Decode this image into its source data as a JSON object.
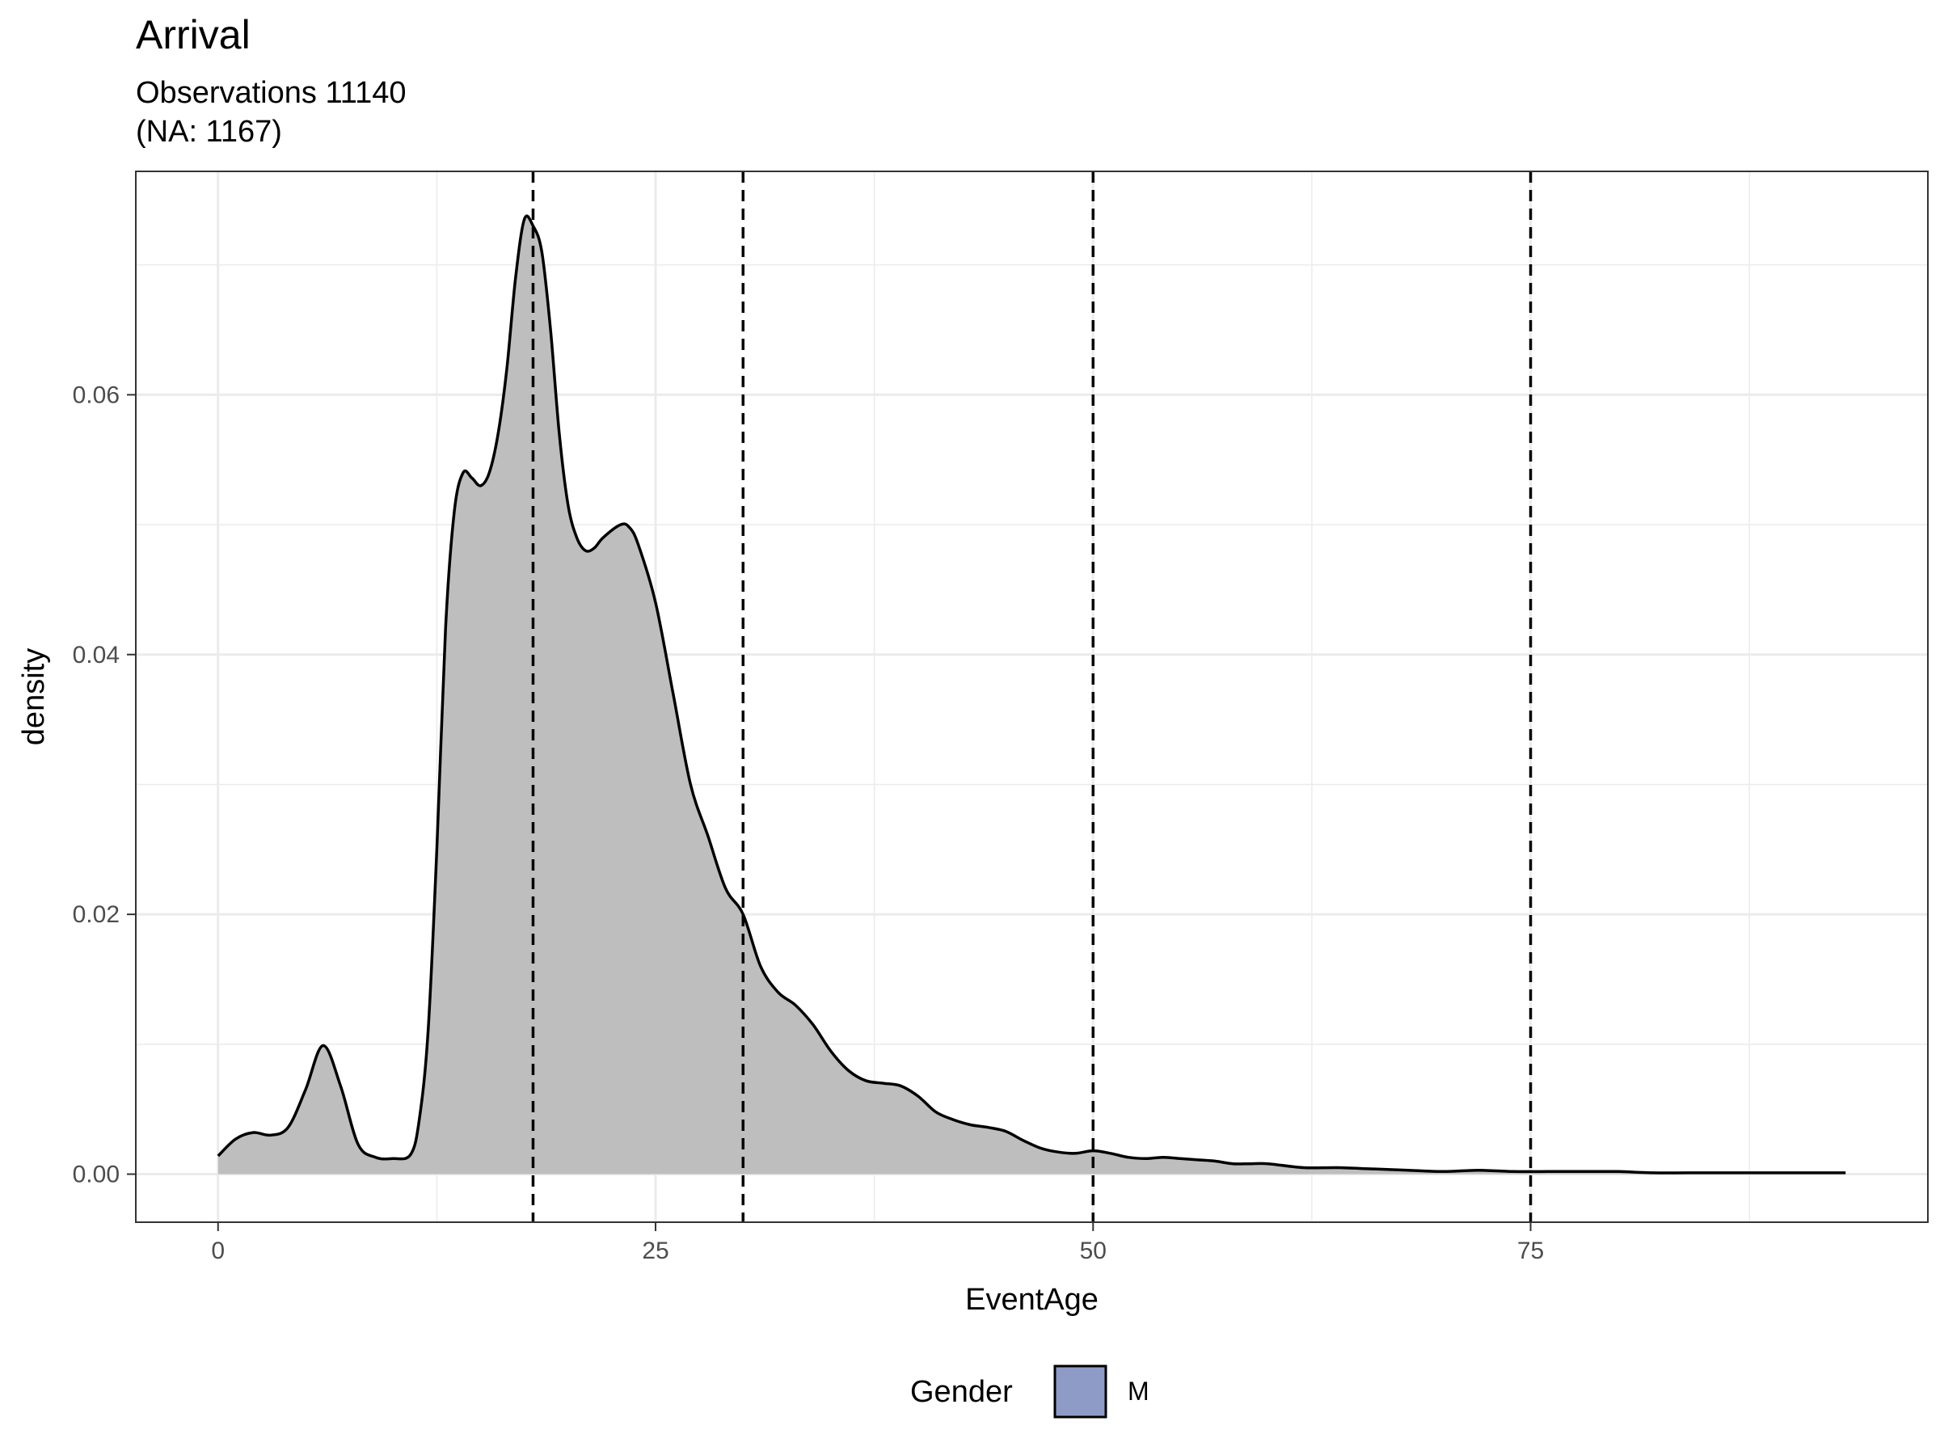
{
  "chart_data": {
    "type": "area",
    "title": "Arrival",
    "subtitle_lines": [
      "Observations 11140",
      "(NA: 1167)"
    ],
    "xlabel": "EventAge",
    "ylabel": "density",
    "xlim": [
      -4.7,
      97.7
    ],
    "ylim": [
      -0.0037,
      0.0772
    ],
    "x_ticks": [
      0,
      25,
      50,
      75
    ],
    "x_tick_labels": [
      "0",
      "25",
      "50",
      "75"
    ],
    "y_ticks": [
      0,
      0.02,
      0.04,
      0.06
    ],
    "y_tick_labels": [
      "0.00",
      "0.02",
      "0.04",
      "0.06"
    ],
    "grid": true,
    "vlines": [
      18,
      30,
      50,
      75
    ],
    "series": [
      {
        "legend_label": "M",
        "area_fill": "#bebebe",
        "legend_fill": "#8f9bc7",
        "line_color": "#000000",
        "x": [
          0,
          1,
          2,
          3,
          4,
          5,
          6,
          7,
          8,
          9,
          10,
          11,
          11.5,
          12,
          12.5,
          13,
          13.5,
          14,
          14.5,
          15,
          15.5,
          16,
          16.5,
          17,
          17.5,
          18,
          18.5,
          19,
          19.5,
          20,
          20.5,
          21,
          21.5,
          22,
          23,
          23.5,
          24,
          25,
          26,
          27,
          28,
          29,
          30,
          31,
          32,
          33,
          34,
          35,
          36,
          37,
          38,
          39,
          40,
          41,
          42,
          43,
          44,
          45,
          46,
          47,
          48,
          49,
          50,
          51,
          52,
          53,
          54,
          55,
          56,
          57,
          58,
          59,
          60,
          62,
          64,
          66,
          68,
          70,
          72,
          74,
          76,
          78,
          80,
          82,
          84,
          86,
          88,
          90,
          93
        ],
        "y": [
          0.0014,
          0.0027,
          0.0032,
          0.003,
          0.0036,
          0.0065,
          0.0099,
          0.0068,
          0.0023,
          0.0013,
          0.0012,
          0.0015,
          0.0042,
          0.011,
          0.025,
          0.042,
          0.051,
          0.054,
          0.0536,
          0.053,
          0.054,
          0.057,
          0.062,
          0.069,
          0.0735,
          0.073,
          0.071,
          0.065,
          0.057,
          0.0515,
          0.049,
          0.048,
          0.0482,
          0.049,
          0.05,
          0.0498,
          0.0485,
          0.044,
          0.037,
          0.03,
          0.026,
          0.022,
          0.02,
          0.016,
          0.014,
          0.013,
          0.0115,
          0.0095,
          0.008,
          0.0072,
          0.007,
          0.0068,
          0.006,
          0.0048,
          0.0042,
          0.0038,
          0.0036,
          0.0033,
          0.0026,
          0.002,
          0.0017,
          0.0016,
          0.0018,
          0.0016,
          0.0013,
          0.0012,
          0.0013,
          0.0012,
          0.0011,
          0.001,
          0.0008,
          0.0008,
          0.0008,
          0.0005,
          0.0005,
          0.0004,
          0.0003,
          0.0002,
          0.0003,
          0.0002,
          0.0002,
          0.0002,
          0.0002,
          0.0001,
          0.0001,
          0.0001,
          0.0001,
          0.0001,
          0.0001
        ]
      }
    ],
    "legend": {
      "title": "Gender",
      "position": "bottom",
      "items": [
        "M"
      ]
    }
  }
}
